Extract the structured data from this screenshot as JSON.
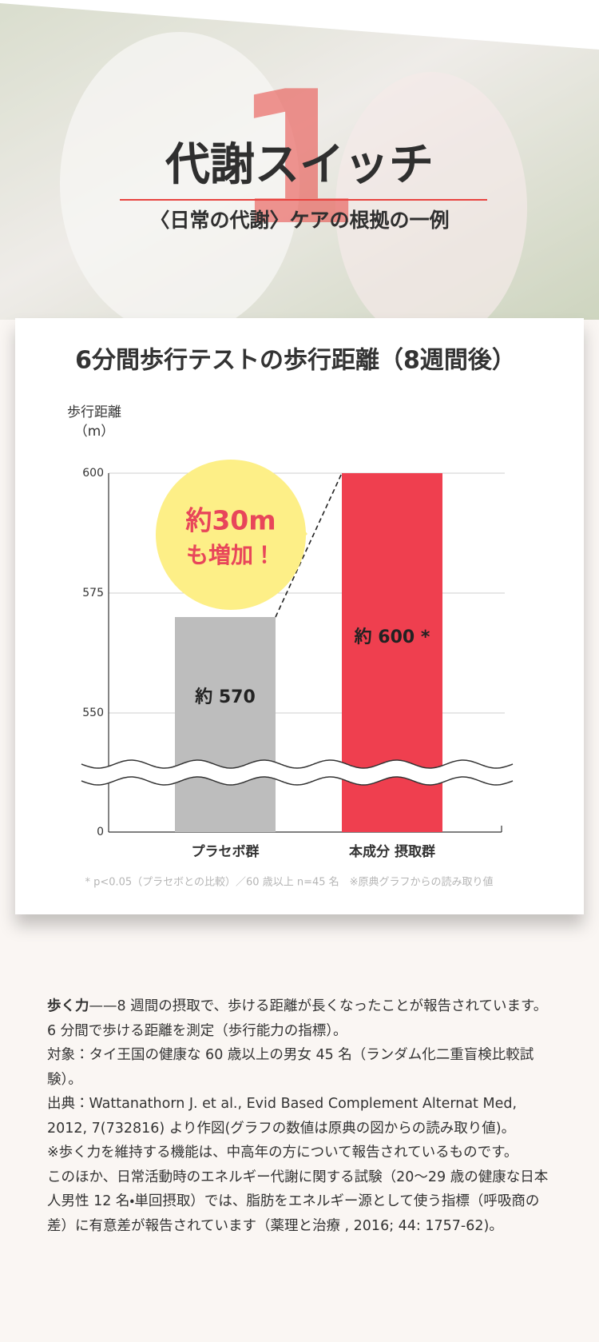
{
  "header": {
    "number": "1",
    "title": "代謝スイッチ",
    "subtitle": "〈日常の代謝〉ケアの根拠の一例"
  },
  "chart_data": {
    "type": "bar",
    "title": "6分間歩行テストの歩行距離（8週間後）",
    "y_label": [
      "歩行距離",
      "（m）"
    ],
    "categories": [
      "プラセボ群",
      "本成分 摂取群"
    ],
    "values": [
      570,
      600
    ],
    "value_labels": [
      "約 570",
      "約 600 *"
    ],
    "colors": [
      "#bdbdbd",
      "#ef3f4f"
    ],
    "ylim": [
      0,
      600
    ],
    "yticks": [
      0,
      550,
      575,
      600
    ],
    "axis_break": true,
    "grid": true,
    "annotation": [
      "約30m",
      "も増加！"
    ],
    "footnote": "* p<0.05（プラセボとの比較）／60 歳以上 n=45 名　※原典グラフからの読み取り値"
  },
  "body": {
    "lead": "歩く力",
    "paragraphs": [
      "——8 週間の摂取で、歩ける距離が長くなったことが報告されています。",
      "6 分間で歩ける距離を測定（歩行能力の指標）。",
      "対象：タイ王国の健康な 60 歳以上の男女 45 名（ランダム化二重盲検比較試験）。",
      "出典：Wattanathorn J. et al., Evid Based Complement Alternat Med, 2012, 7(732816) より作図(グラフの数値は原典の図からの読み取り値)。",
      "※歩く力を維持する機能は、中高年の方について報告されているものです。",
      "このほか、日常活動時のエネルギー代謝に関する試験（20〜29 歳の健康な日本人男性 12 名・単回摂取）では、脂肪をエネルギー源として使う指標（呼吸商の差）に有意差が報告されています（薬理と治療 , 2016; 44: 1757-62)。"
    ]
  }
}
